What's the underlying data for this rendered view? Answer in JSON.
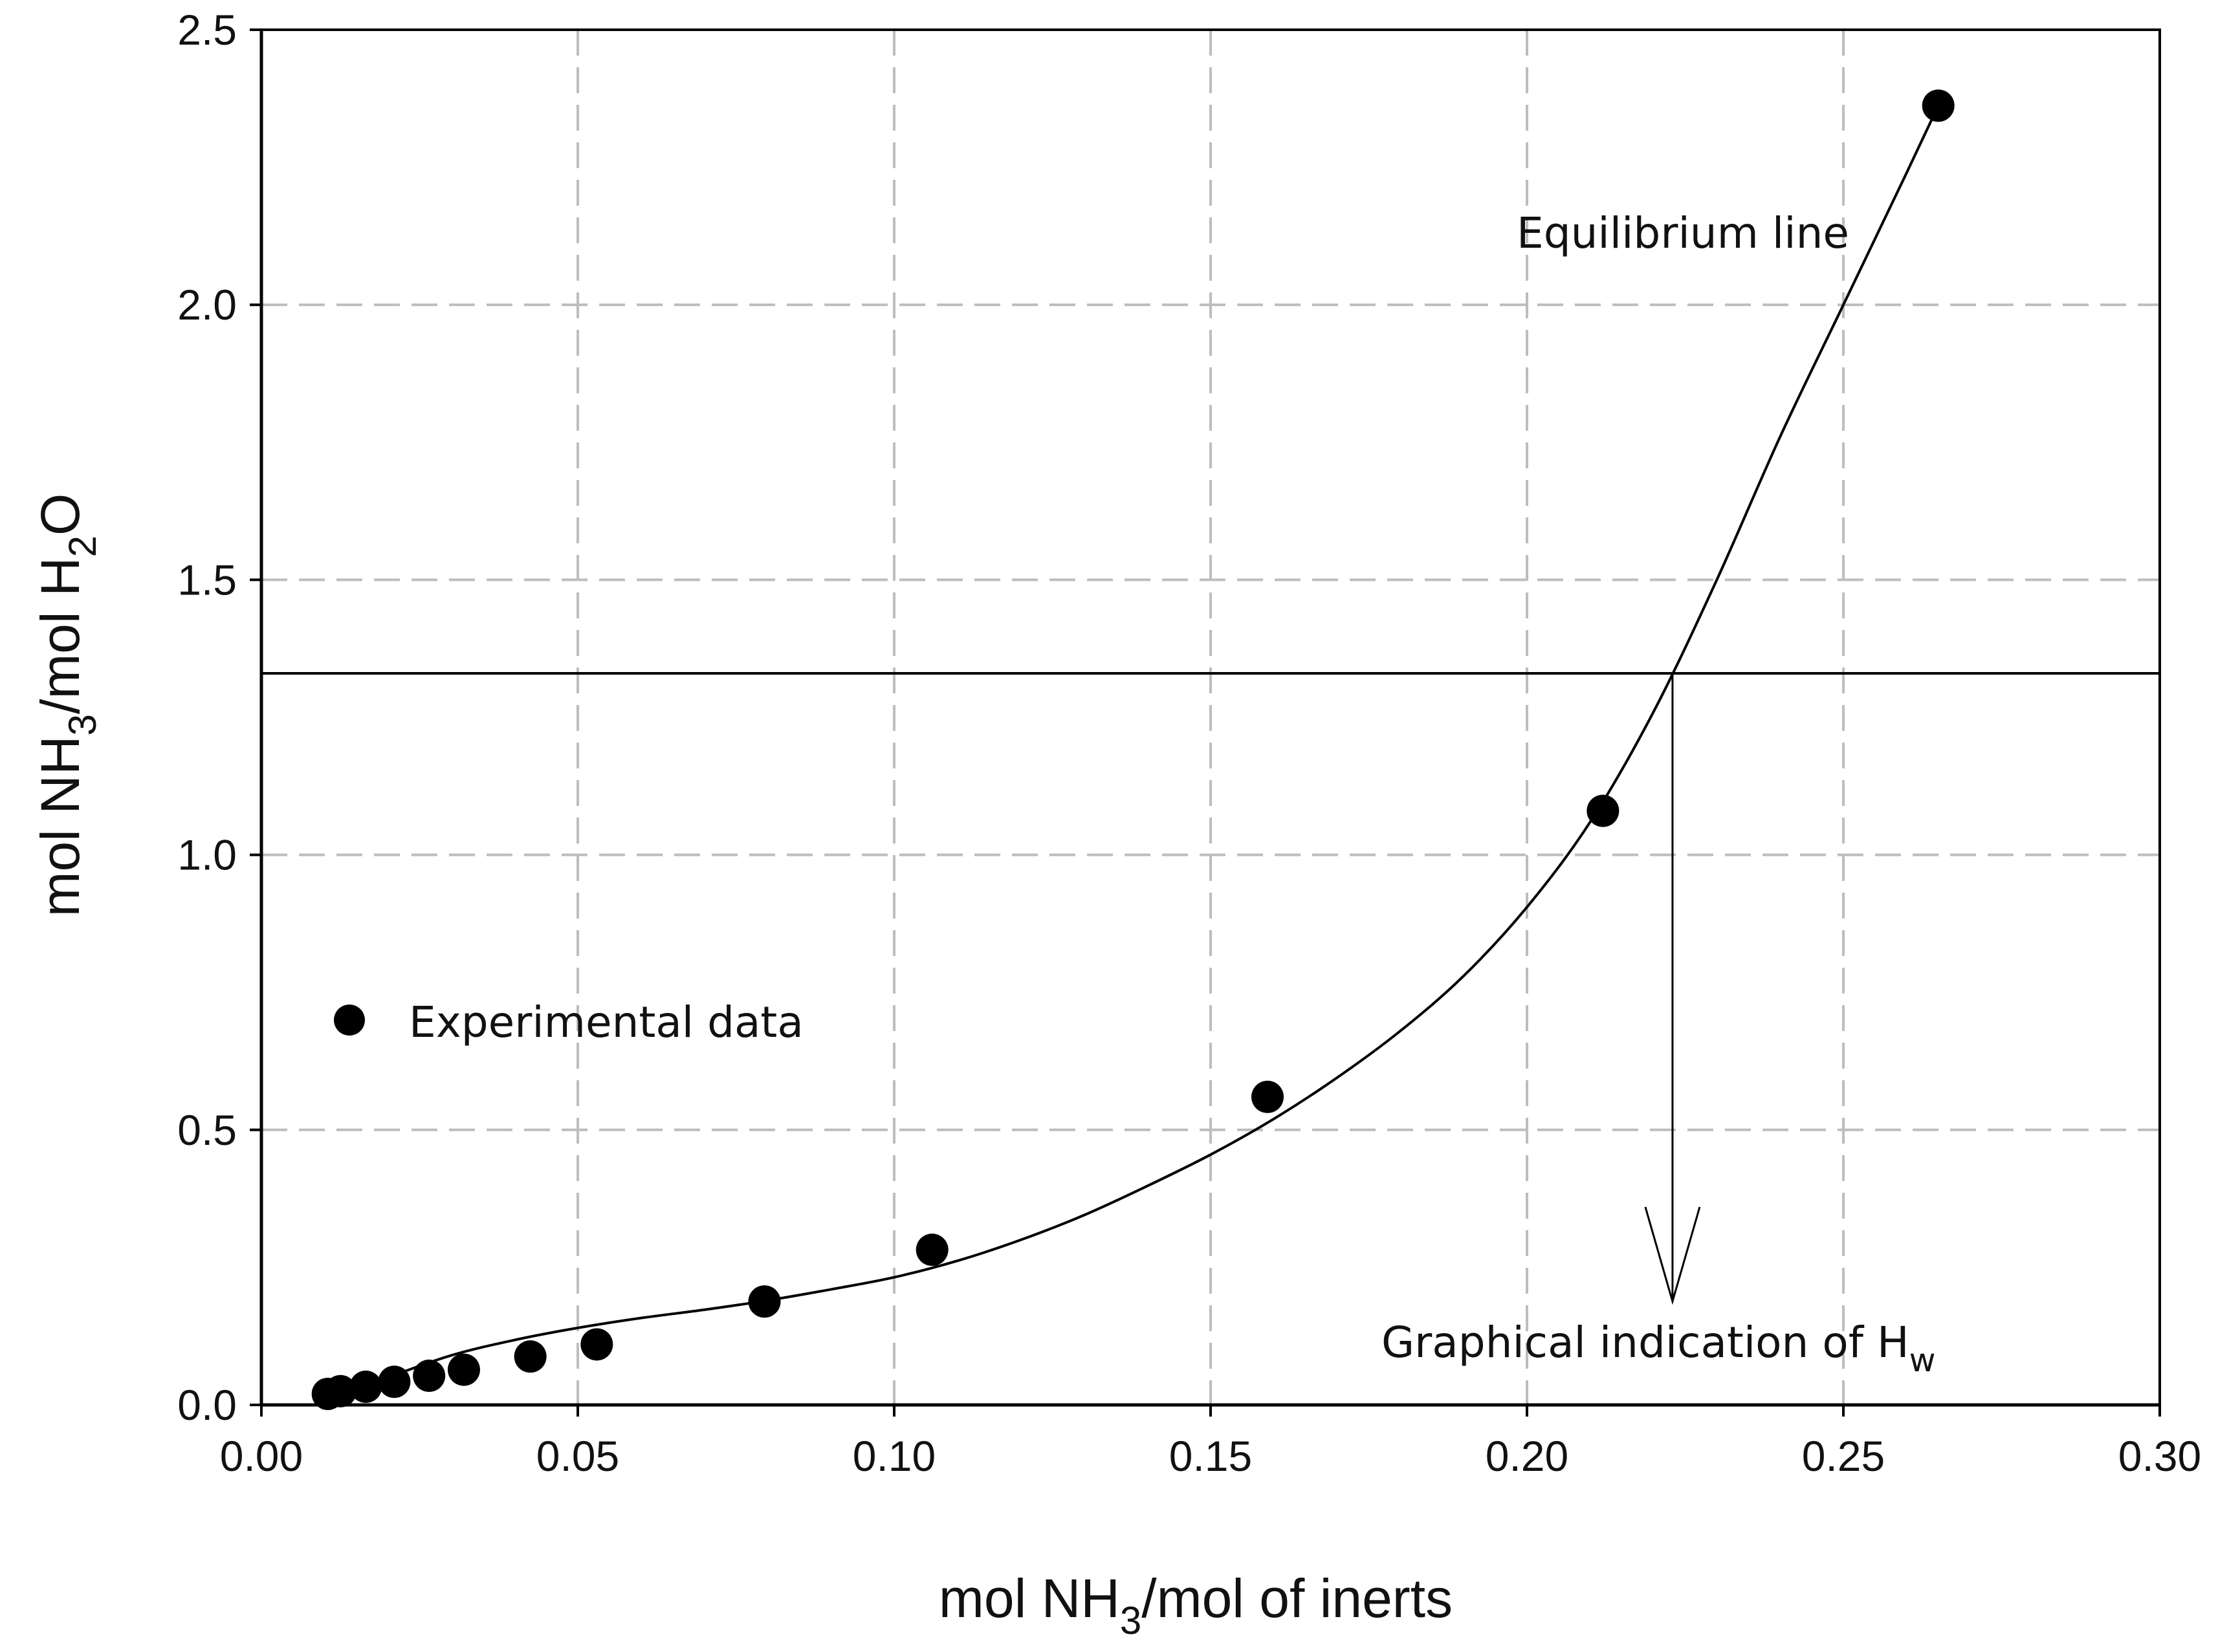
{
  "chart_data": {
    "type": "scatter",
    "title": "",
    "xlabel": {
      "pre": "mol  NH",
      "sub": "3",
      "post": "/mol of inerts"
    },
    "ylabel": {
      "pre": "mol NH",
      "sub1": "3",
      "mid": "/mol H",
      "sub2": "2",
      "post": "O"
    },
    "xlim": [
      0.0,
      0.3
    ],
    "ylim": [
      0.0,
      2.5
    ],
    "xticks": [
      "0.00",
      "0.05",
      "0.10",
      "0.15",
      "0.20",
      "0.25",
      "0.30"
    ],
    "yticks": [
      "0.0",
      "0.5",
      "1.0",
      "1.5",
      "2.0",
      "2.5"
    ],
    "grid": true,
    "series": [
      {
        "name": "Experimental data",
        "kind": "scatter",
        "color": "#000000",
        "x": [
          0.0105,
          0.0125,
          0.0165,
          0.021,
          0.0265,
          0.032,
          0.0425,
          0.053,
          0.0795,
          0.106,
          0.159,
          0.212,
          0.265
        ],
        "y": [
          0.02,
          0.025,
          0.033,
          0.042,
          0.053,
          0.064,
          0.088,
          0.11,
          0.188,
          0.282,
          0.56,
          1.08,
          2.362
        ]
      },
      {
        "name": "Equilibrium line",
        "kind": "line",
        "color": "#000000",
        "x": [
          0.0105,
          0.02,
          0.03,
          0.04,
          0.05,
          0.06,
          0.07,
          0.08,
          0.09,
          0.1,
          0.11,
          0.12,
          0.13,
          0.14,
          0.15,
          0.16,
          0.17,
          0.18,
          0.19,
          0.2,
          0.21,
          0.22,
          0.23,
          0.24,
          0.25,
          0.26,
          0.265
        ],
        "y": [
          0.01,
          0.05,
          0.09,
          0.118,
          0.14,
          0.158,
          0.173,
          0.19,
          0.21,
          0.232,
          0.262,
          0.3,
          0.345,
          0.398,
          0.455,
          0.52,
          0.595,
          0.68,
          0.78,
          0.905,
          1.06,
          1.26,
          1.5,
          1.76,
          2.0,
          2.24,
          2.362
        ]
      }
    ],
    "reference_line": {
      "name": "Horizontal operating line",
      "y": 1.33
    },
    "intersection": {
      "x": 0.223,
      "y": 1.33
    },
    "annotations": [
      {
        "name": "equilibrium-line-label",
        "text": "Equilibrium line"
      },
      {
        "name": "experimental-data-label",
        "text": "Experimental data"
      },
      {
        "name": "hw-label",
        "text": "Graphical indication of H",
        "sub": "w"
      }
    ]
  }
}
